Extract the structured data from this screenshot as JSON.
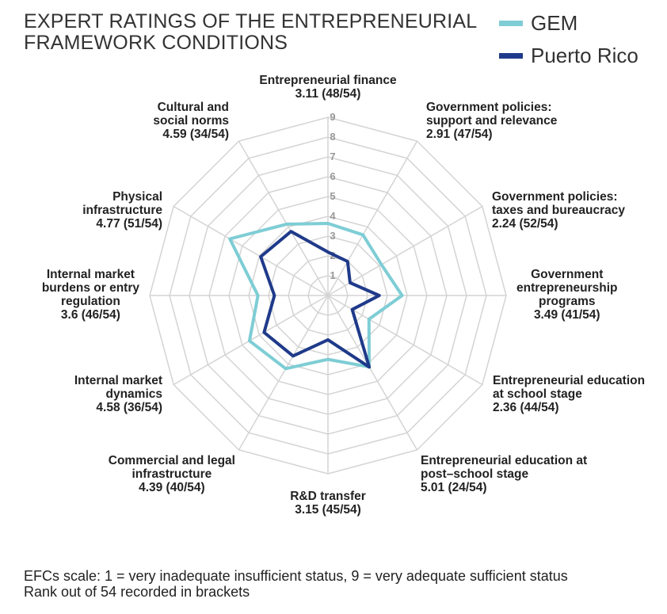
{
  "chart_data": {
    "type": "radar",
    "title": "EXPERT RATINGS OF THE ENTREPRENEURIAL FRAMEWORK CONDITIONS",
    "title_lines": [
      "EXPERT RATINGS OF THE ENTREPRENEURIAL",
      "FRAMEWORK CONDITIONS"
    ],
    "categories": [
      {
        "name": [
          "Entrepreneurial finance"
        ],
        "value_label": "3.11 (48/54)"
      },
      {
        "name": [
          "Government policies:",
          "support and relevance"
        ],
        "value_label": "2.91 (47/54)"
      },
      {
        "name": [
          "Government policies:",
          "taxes and bureaucracy"
        ],
        "value_label": "2.24 (52/54)"
      },
      {
        "name": [
          "Government",
          "entrepreneurship",
          "programs"
        ],
        "value_label": "3.49 (41/54)"
      },
      {
        "name": [
          "Entrepreneurial education",
          "at school stage"
        ],
        "value_label": "2.36 (44/54)"
      },
      {
        "name": [
          "Entrepreneurial education at",
          "post–school stage"
        ],
        "value_label": "5.01 (24/54)"
      },
      {
        "name": [
          "R&D transfer"
        ],
        "value_label": "3.15 (45/54)"
      },
      {
        "name": [
          "Commercial and legal",
          "infrastructure"
        ],
        "value_label": "4.39 (40/54)"
      },
      {
        "name": [
          "Internal market",
          "dynamics"
        ],
        "value_label": "4.58 (36/54)"
      },
      {
        "name": [
          "Internal market",
          "burdens or entry",
          "regulation"
        ],
        "value_label": "3.6 (46/54)"
      },
      {
        "name": [
          "Physical",
          "infrastructure"
        ],
        "value_label": "4.77 (51/54)"
      },
      {
        "name": [
          "Cultural and",
          "social norms"
        ],
        "value_label": "4.59 (34/54)"
      }
    ],
    "series": [
      {
        "name": "GEM",
        "color": "#7ecdd5",
        "values": [
          4.5,
          4.4,
          4.0,
          4.6,
          3.3,
          5.0,
          4.1,
          5.1,
          5.4,
          4.4,
          6.5,
          5.0
        ]
      },
      {
        "name": "Puerto Rico",
        "color": "#1f3a8a",
        "values": [
          3.11,
          2.91,
          2.24,
          3.49,
          2.36,
          5.01,
          3.15,
          4.39,
          4.58,
          3.6,
          4.77,
          4.59
        ]
      }
    ],
    "ticks": [
      "1",
      "2",
      "3",
      "4",
      "5",
      "6",
      "7",
      "8",
      "9"
    ],
    "range": [
      1,
      9
    ],
    "legend_position": "top-right",
    "footnotes": [
      "EFCs scale: 1 = very inadequate insufficient status, 9 = very adequate sufficient status",
      "Rank out of 54 recorded in brackets"
    ]
  }
}
